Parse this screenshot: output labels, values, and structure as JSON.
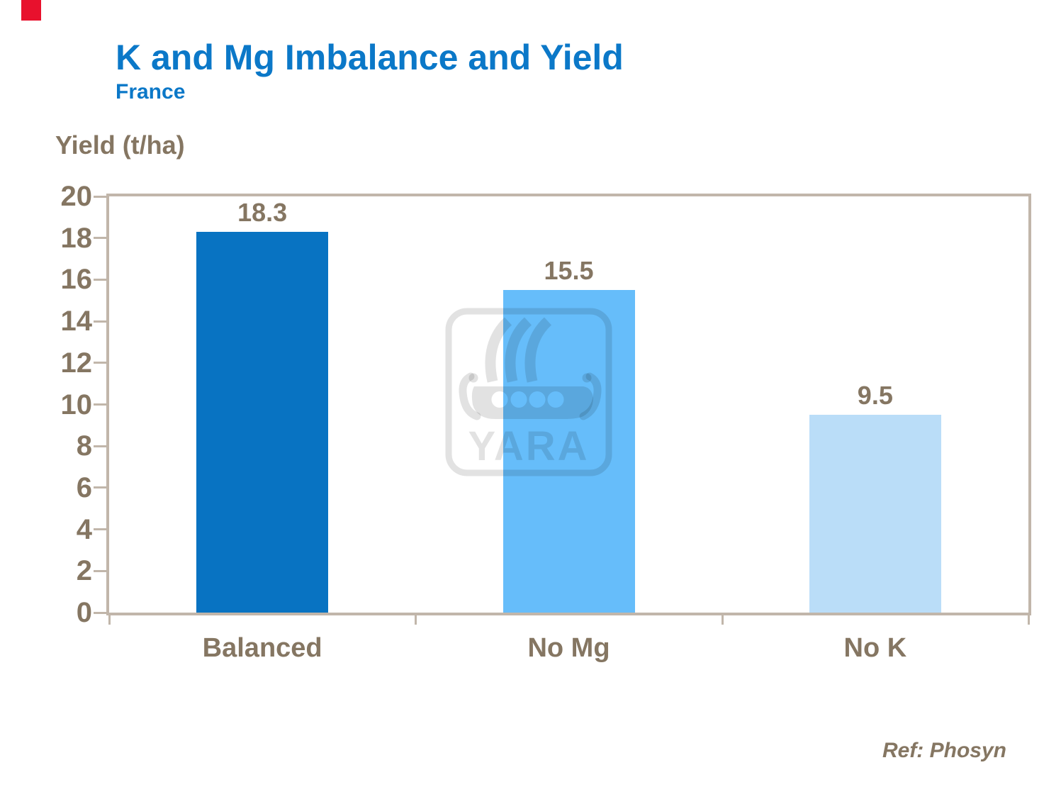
{
  "slide": {
    "title": "K and Mg Imbalance and Yield",
    "subtitle": "France",
    "reference": "Ref: Phosyn",
    "corner_marker_color": "#E8112D",
    "watermark_text": "YARA"
  },
  "chart_data": {
    "type": "bar",
    "title": "K and Mg Imbalance and Yield",
    "subtitle": "France",
    "categories": [
      "Balanced",
      "No Mg",
      "No K"
    ],
    "values": [
      18.3,
      15.5,
      9.5
    ],
    "data_labels": [
      "18.3",
      "15.5",
      "9.5"
    ],
    "bar_colors": [
      "#0873C2",
      "#66BDFA",
      "#BADDF8"
    ],
    "ylabel": "Yield (t/ha)",
    "xlabel": "",
    "ylim": [
      0,
      20
    ],
    "yticks": [
      0,
      2,
      4,
      6,
      8,
      10,
      12,
      14,
      16,
      18,
      20
    ],
    "grid": false,
    "legend": false,
    "axis_color": "#C1B6AA",
    "label_color": "#857662",
    "watermark": "YARA",
    "reference": "Ref: Phosyn"
  }
}
